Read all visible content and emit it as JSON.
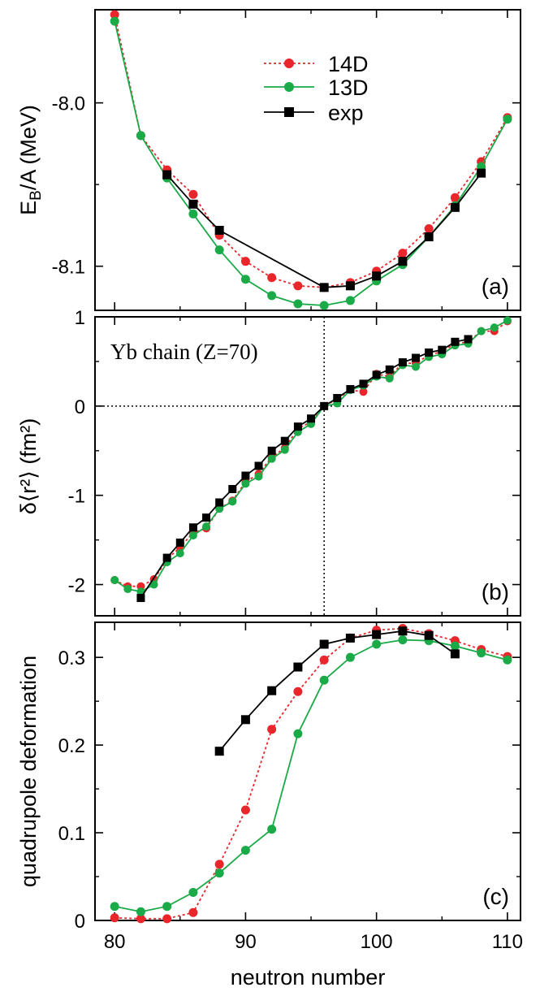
{
  "chart_data": [
    {
      "type": "line",
      "panel_label": "(a)",
      "ylabel": "E_B/A (MeV)",
      "xlim": [
        78.5,
        111
      ],
      "ylim": [
        -8.127,
        -7.943
      ],
      "xticks": [
        "80",
        "90",
        "100",
        "110"
      ],
      "yticks": [
        "-8.0",
        "-8.1"
      ],
      "legend": {
        "placement": "top-center",
        "entries": [
          "14D",
          "13D",
          "exp"
        ]
      },
      "series": [
        {
          "name": "14D",
          "color": "#e8262b",
          "style": "dotted",
          "marker": "circle",
          "x": [
            80,
            82,
            84,
            86,
            88,
            90,
            92,
            94,
            96,
            98,
            100,
            102,
            104,
            106,
            108,
            110
          ],
          "y": [
            -7.946,
            -8.02,
            -8.041,
            -8.056,
            -8.081,
            -8.097,
            -8.107,
            -8.112,
            -8.113,
            -8.11,
            -8.103,
            -8.092,
            -8.077,
            -8.058,
            -8.036,
            -8.009
          ]
        },
        {
          "name": "13D",
          "color": "#1aaa48",
          "style": "solid",
          "marker": "circle",
          "x": [
            80,
            82,
            84,
            86,
            88,
            90,
            92,
            94,
            96,
            98,
            100,
            102,
            104,
            106,
            108,
            110
          ],
          "y": [
            -7.95,
            -8.02,
            -8.046,
            -8.068,
            -8.09,
            -8.108,
            -8.118,
            -8.123,
            -8.124,
            -8.121,
            -8.109,
            -8.099,
            -8.082,
            -8.063,
            -8.039,
            -8.01
          ]
        },
        {
          "name": "exp",
          "color": "#000000",
          "style": "solid",
          "marker": "square",
          "x": [
            84,
            86,
            88,
            96,
            98,
            100,
            102,
            104,
            106,
            108
          ],
          "y": [
            -8.044,
            -8.062,
            -8.078,
            -8.113,
            -8.112,
            -8.106,
            -8.097,
            -8.082,
            -8.064,
            -8.043
          ]
        }
      ]
    },
    {
      "type": "line",
      "panel_label": "(b)",
      "ylabel": "δ⟨r²⟩ (fm²)",
      "annotation": "Yb chain (Z=70)",
      "xlim": [
        78.5,
        111
      ],
      "ylim": [
        -2.35,
        1.0
      ],
      "xticks": [
        "80",
        "90",
        "100",
        "110"
      ],
      "yticks": [
        "-2",
        "-1",
        "0",
        "1"
      ],
      "reference_lines": {
        "x": 96,
        "y": 0
      },
      "series": [
        {
          "name": "14D",
          "color": "#e8262b",
          "style": "dotted",
          "marker": "circle",
          "x": [
            80,
            81,
            82,
            83,
            84,
            85,
            86,
            87,
            88,
            89,
            90,
            91,
            92,
            93,
            94,
            95,
            96,
            97,
            98,
            99,
            100,
            101,
            102,
            103,
            104,
            105,
            106,
            107,
            108,
            109,
            110
          ],
          "y": [
            -1.95,
            -2.02,
            -2.02,
            -1.94,
            -1.72,
            -1.58,
            -1.42,
            -1.37,
            -1.15,
            -1.06,
            -0.85,
            -0.76,
            -0.57,
            -0.47,
            -0.25,
            -0.18,
            0.0,
            0.08,
            0.18,
            0.16,
            0.36,
            0.33,
            0.48,
            0.48,
            0.57,
            0.61,
            0.7,
            0.72,
            0.84,
            0.84,
            0.95
          ]
        },
        {
          "name": "13D",
          "color": "#1aaa48",
          "style": "solid",
          "marker": "circle",
          "x": [
            80,
            81,
            82,
            83,
            84,
            85,
            86,
            87,
            88,
            89,
            90,
            91,
            92,
            93,
            94,
            95,
            96,
            97,
            98,
            99,
            100,
            101,
            102,
            103,
            104,
            105,
            106,
            107,
            108,
            109,
            110
          ],
          "y": [
            -1.95,
            -2.05,
            -2.08,
            -2.0,
            -1.75,
            -1.65,
            -1.45,
            -1.35,
            -1.15,
            -1.07,
            -0.87,
            -0.79,
            -0.59,
            -0.49,
            -0.29,
            -0.2,
            0.0,
            0.03,
            0.18,
            0.23,
            0.33,
            0.31,
            0.46,
            0.44,
            0.55,
            0.58,
            0.68,
            0.7,
            0.84,
            0.88,
            0.96
          ]
        },
        {
          "name": "exp",
          "color": "#000000",
          "style": "solid",
          "marker": "square",
          "x": [
            82,
            84,
            85,
            86,
            87,
            88,
            89,
            90,
            91,
            92,
            93,
            94,
            95,
            96,
            97,
            98,
            99,
            100,
            101,
            102,
            103,
            104,
            105,
            106,
            107
          ],
          "y": [
            -2.15,
            -1.7,
            -1.53,
            -1.36,
            -1.25,
            -1.08,
            -0.93,
            -0.78,
            -0.67,
            -0.5,
            -0.39,
            -0.23,
            -0.14,
            0.0,
            0.09,
            0.19,
            0.25,
            0.35,
            0.41,
            0.49,
            0.54,
            0.6,
            0.63,
            0.72,
            0.75
          ]
        }
      ]
    },
    {
      "type": "line",
      "panel_label": "(c)",
      "ylabel": "quadrupole deformation",
      "xlabel": "neutron number",
      "xlim": [
        78.5,
        111
      ],
      "ylim": [
        0.0,
        0.34
      ],
      "xticks": [
        "80",
        "90",
        "100",
        "110"
      ],
      "yticks": [
        "0",
        "0.1",
        "0.2",
        "0.3"
      ],
      "series": [
        {
          "name": "14D",
          "color": "#e8262b",
          "style": "dotted",
          "marker": "circle",
          "x": [
            80,
            82,
            84,
            86,
            88,
            90,
            92,
            94,
            96,
            98,
            100,
            102,
            104,
            106,
            108,
            110
          ],
          "y": [
            0.003,
            0.002,
            0.002,
            0.009,
            0.064,
            0.126,
            0.218,
            0.261,
            0.297,
            0.322,
            0.331,
            0.333,
            0.327,
            0.319,
            0.309,
            0.301
          ]
        },
        {
          "name": "13D",
          "color": "#1aaa48",
          "style": "solid",
          "marker": "circle",
          "x": [
            80,
            82,
            84,
            86,
            88,
            90,
            92,
            94,
            96,
            98,
            100,
            102,
            104,
            106,
            108,
            110
          ],
          "y": [
            0.016,
            0.01,
            0.016,
            0.032,
            0.054,
            0.08,
            0.104,
            0.213,
            0.274,
            0.3,
            0.315,
            0.32,
            0.319,
            0.313,
            0.305,
            0.297
          ]
        },
        {
          "name": "exp",
          "color": "#000000",
          "style": "solid",
          "marker": "square",
          "x": [
            88,
            90,
            92,
            94,
            96,
            98,
            100,
            102,
            104,
            106
          ],
          "y": [
            0.193,
            0.229,
            0.262,
            0.289,
            0.315,
            0.322,
            0.326,
            0.33,
            0.325,
            0.304
          ]
        }
      ]
    }
  ]
}
